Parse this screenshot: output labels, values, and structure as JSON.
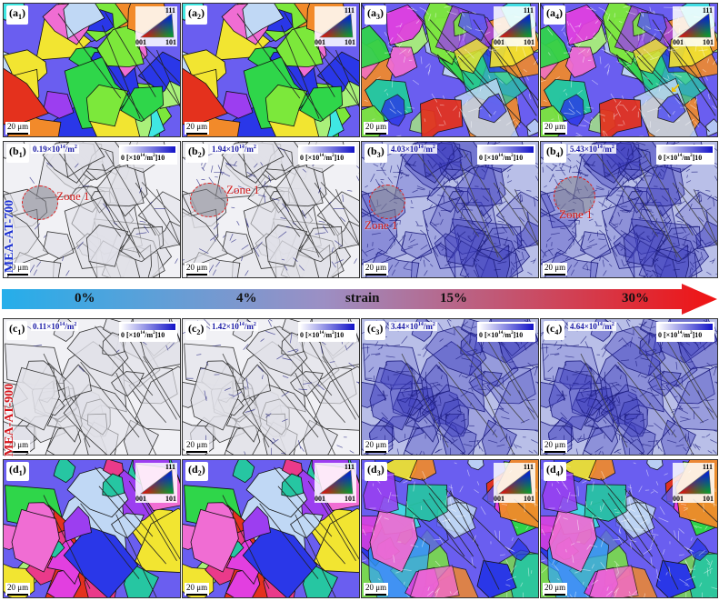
{
  "panels": {
    "a1": {
      "letter": "a",
      "sub": "1",
      "scale": "20 μm",
      "ipf": {
        "top": "111",
        "left": "001",
        "right": "101"
      }
    },
    "a2": {
      "letter": "a",
      "sub": "2",
      "scale": "20 μm",
      "ipf": {
        "top": "111",
        "left": "001",
        "right": "101"
      }
    },
    "a3": {
      "letter": "a",
      "sub": "3",
      "scale": "20 μm",
      "ipf": {
        "top": "111",
        "left": "001",
        "right": "101"
      }
    },
    "a4": {
      "letter": "a",
      "sub": "4",
      "scale": "20 μm",
      "ipf": {
        "top": "111",
        "left": "001",
        "right": "101"
      }
    },
    "b1": {
      "letter": "b",
      "sub": "1",
      "scale": "20 μm",
      "density_base": "0.19×10",
      "density_exp": "14",
      "density_unit": "/m",
      "density_unit_exp": "2",
      "cbar_left": "0",
      "cbar_mid": "[×10",
      "cbar_mid_exp": "14",
      "cbar_unit": "/m",
      "cbar_unit_exp": "2",
      "cbar_right": "]10",
      "zone": "Zone 1"
    },
    "b2": {
      "letter": "b",
      "sub": "2",
      "scale": "20 μm",
      "density_base": "1.94×10",
      "density_exp": "14",
      "density_unit": "/m",
      "density_unit_exp": "2",
      "cbar_left": "0",
      "cbar_mid": "[×10",
      "cbar_mid_exp": "14",
      "cbar_unit": "/m",
      "cbar_unit_exp": "2",
      "cbar_right": "]10",
      "zone": "Zone 1"
    },
    "b3": {
      "letter": "b",
      "sub": "3",
      "scale": "20 μm",
      "density_base": "4.03×10",
      "density_exp": "14",
      "density_unit": "/m",
      "density_unit_exp": "2",
      "cbar_left": "0",
      "cbar_mid": "[×10",
      "cbar_mid_exp": "14",
      "cbar_unit": "/m",
      "cbar_unit_exp": "2",
      "cbar_right": "]10",
      "zone": "Zone 1"
    },
    "b4": {
      "letter": "b",
      "sub": "4",
      "scale": "20 μm",
      "density_base": "5.43×10",
      "density_exp": "14",
      "density_unit": "/m",
      "density_unit_exp": "2",
      "cbar_left": "0",
      "cbar_mid": "[×10",
      "cbar_mid_exp": "14",
      "cbar_unit": "/m",
      "cbar_unit_exp": "2",
      "cbar_right": "]10",
      "zone": "Zone 1"
    },
    "c1": {
      "letter": "c",
      "sub": "1",
      "scale": "20 μm",
      "density_base": "0.11×10",
      "density_exp": "14",
      "density_unit": "/m",
      "density_unit_exp": "2",
      "cbar_left": "0",
      "cbar_mid": "[×10",
      "cbar_mid_exp": "14",
      "cbar_unit": "/m",
      "cbar_unit_exp": "2",
      "cbar_right": "]10"
    },
    "c2": {
      "letter": "c",
      "sub": "2",
      "scale": "20 μm",
      "density_base": "1.42×10",
      "density_exp": "14",
      "density_unit": "/m",
      "density_unit_exp": "2",
      "cbar_left": "0",
      "cbar_mid": "[×10",
      "cbar_mid_exp": "14",
      "cbar_unit": "/m",
      "cbar_unit_exp": "2",
      "cbar_right": "]10"
    },
    "c3": {
      "letter": "c",
      "sub": "3",
      "scale": "20 μm",
      "density_base": "3.44×10",
      "density_exp": "14",
      "density_unit": "/m",
      "density_unit_exp": "2",
      "cbar_left": "0",
      "cbar_mid": "[×10",
      "cbar_mid_exp": "14",
      "cbar_unit": "/m",
      "cbar_unit_exp": "2",
      "cbar_right": "]10"
    },
    "c4": {
      "letter": "c",
      "sub": "4",
      "scale": "20 μm",
      "density_base": "4.64×10",
      "density_exp": "14",
      "density_unit": "/m",
      "density_unit_exp": "2",
      "cbar_left": "0",
      "cbar_mid": "[×10",
      "cbar_mid_exp": "14",
      "cbar_unit": "/m",
      "cbar_unit_exp": "2",
      "cbar_right": "]10"
    },
    "d1": {
      "letter": "d",
      "sub": "1",
      "scale": "20 μm",
      "ipf": {
        "top": "111",
        "left": "001",
        "right": "101"
      }
    },
    "d2": {
      "letter": "d",
      "sub": "2",
      "scale": "20 μm",
      "ipf": {
        "top": "111",
        "left": "001",
        "right": "101"
      }
    },
    "d3": {
      "letter": "d",
      "sub": "3",
      "scale": "20 μm",
      "ipf": {
        "top": "111",
        "left": "001",
        "right": "101"
      }
    },
    "d4": {
      "letter": "d",
      "sub": "4",
      "scale": "20 μm",
      "ipf": {
        "top": "111",
        "left": "001",
        "right": "101"
      }
    }
  },
  "side_labels": {
    "b": {
      "text": "MEA-AT-700",
      "color": "#1a2fd0"
    },
    "c": {
      "text": "MEA-AT-900",
      "color": "#d4141a"
    }
  },
  "strain_bar": {
    "labels": [
      "0%",
      "4%",
      "strain",
      "15%",
      "30%"
    ],
    "colors": {
      "start": "#25aeea",
      "mid": "#9c8fc4",
      "end": "#f01212"
    }
  },
  "colors": {
    "density_text": "#1a1aa6",
    "zone": "#e11818"
  }
}
